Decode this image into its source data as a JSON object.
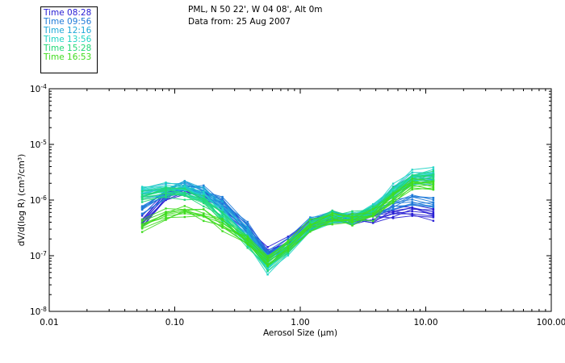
{
  "header": {
    "line1": "PML, N 50 22', W 04 08', Alt 0m",
    "line2": "Data from: 25 Aug 2007"
  },
  "legend": [
    {
      "label": "Time 08:28",
      "color": "#2a20d4"
    },
    {
      "label": "Time 09:56",
      "color": "#1e7ad8"
    },
    {
      "label": "Time 12:16",
      "color": "#1ea8d8"
    },
    {
      "label": "Time 13:56",
      "color": "#20d4c4"
    },
    {
      "label": "Time 15:28",
      "color": "#22d878"
    },
    {
      "label": "Time 16:53",
      "color": "#40dc20"
    }
  ],
  "chart_data": {
    "type": "line",
    "title": "PML, N 50 22', W 04 08', Alt 0m",
    "subtitle": "Data from: 25 Aug 2007",
    "xlabel": "Aerosol Size (μm)",
    "ylabel": "dV/d(log R) (cm³/cm³)",
    "xscale": "log",
    "yscale": "log",
    "xlim": [
      0.01,
      100
    ],
    "ylim": [
      1e-08,
      0.0001
    ],
    "x_ticks": [
      {
        "value": 0.01,
        "label": "0.01"
      },
      {
        "value": 0.1,
        "label": "0.10"
      },
      {
        "value": 1,
        "label": "1.00"
      },
      {
        "value": 10,
        "label": "10.00"
      },
      {
        "value": 100,
        "label": "100.00"
      }
    ],
    "y_ticks": [
      {
        "exp": -8,
        "base": "10",
        "sup": "-8"
      },
      {
        "exp": -7,
        "base": "10",
        "sup": "-7"
      },
      {
        "exp": -6,
        "base": "10",
        "sup": "-6"
      },
      {
        "exp": -5,
        "base": "10",
        "sup": "-5"
      },
      {
        "exp": -4,
        "base": "10",
        "sup": "-4"
      }
    ],
    "x": [
      0.055,
      0.085,
      0.12,
      0.17,
      0.24,
      0.38,
      0.55,
      0.8,
      1.2,
      1.8,
      2.6,
      3.8,
      5.5,
      7.8,
      11.5
    ],
    "series_groups": [
      {
        "name": "Time 08:28",
        "color": "#2a20d4",
        "values": [
          4e-07,
          1.2e-06,
          1.6e-06,
          1.3e-06,
          8e-07,
          2.8e-07,
          1.1e-07,
          1.7e-07,
          3.6e-07,
          4.8e-07,
          4.6e-07,
          4.8e-07,
          6e-07,
          6.5e-07,
          5.5e-07
        ]
      },
      {
        "name": "Time 09:56",
        "color": "#1e7ad8",
        "values": [
          7e-07,
          1.3e-06,
          1.7e-06,
          1.4e-06,
          9e-07,
          3.2e-07,
          1e-07,
          1.6e-07,
          3.8e-07,
          5e-07,
          4.4e-07,
          5.5e-07,
          8e-07,
          1e-06,
          9e-07
        ]
      },
      {
        "name": "Time 12:16",
        "color": "#1ea8d8",
        "values": [
          1.3e-06,
          1.5e-06,
          1.8e-06,
          1.4e-06,
          7.5e-07,
          2.6e-07,
          8e-08,
          1.5e-07,
          3.6e-07,
          5.2e-07,
          4.5e-07,
          6.5e-07,
          1.4e-06,
          2.4e-06,
          2.5e-06
        ]
      },
      {
        "name": "Time 13:56",
        "color": "#20d4c4",
        "values": [
          1.4e-06,
          1.6e-06,
          1.5e-06,
          1.1e-06,
          5.5e-07,
          1.9e-07,
          6e-08,
          1.3e-07,
          3.3e-07,
          4.8e-07,
          4.6e-07,
          6.8e-07,
          1.5e-06,
          2.7e-06,
          3e-06
        ]
      },
      {
        "name": "Time 15:28",
        "color": "#22d878",
        "values": [
          1.1e-06,
          1.4e-06,
          1.3e-06,
          1e-06,
          5e-07,
          1.8e-07,
          7e-08,
          1.4e-07,
          3.5e-07,
          5e-07,
          4.8e-07,
          6.5e-07,
          1.3e-06,
          2.3e-06,
          2.6e-06
        ]
      },
      {
        "name": "Time 16:53",
        "color": "#40dc20",
        "values": [
          3.5e-07,
          5.5e-07,
          6.5e-07,
          5.5e-07,
          3.6e-07,
          1.8e-07,
          8e-08,
          1.5e-07,
          3.4e-07,
          4.7e-07,
          4.5e-07,
          5.5e-07,
          1.1e-06,
          1.9e-06,
          1.8e-06
        ]
      }
    ],
    "curves_per_group": 9,
    "grid": false,
    "legend_position": "top-left"
  }
}
